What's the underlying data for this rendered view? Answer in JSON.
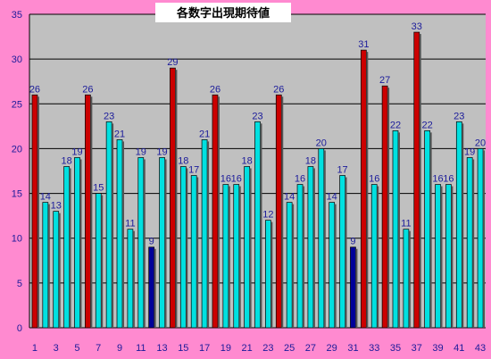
{
  "chart_data": {
    "type": "bar",
    "title": "各数字出現期待値",
    "xlabel": "",
    "ylabel": "",
    "ylim": [
      0,
      35
    ],
    "yticks": [
      0,
      5,
      10,
      15,
      20,
      25,
      30,
      35
    ],
    "grid": true,
    "categories": [
      "1",
      "2",
      "3",
      "4",
      "5",
      "6",
      "7",
      "8",
      "9",
      "10",
      "11",
      "12",
      "13",
      "14",
      "15",
      "16",
      "17",
      "18",
      "19",
      "20",
      "21",
      "22",
      "23",
      "24",
      "25",
      "26",
      "27",
      "28",
      "29",
      "30",
      "31",
      "32",
      "33",
      "34",
      "35",
      "36",
      "37",
      "38",
      "39",
      "40",
      "41",
      "42",
      "43"
    ],
    "xtick_labels": [
      "1",
      "3",
      "5",
      "7",
      "9",
      "11",
      "13",
      "15",
      "17",
      "19",
      "21",
      "23",
      "25",
      "27",
      "29",
      "31",
      "33",
      "35",
      "37",
      "39",
      "41",
      "43"
    ],
    "values": [
      26,
      14,
      13,
      18,
      19,
      26,
      15,
      23,
      21,
      11,
      19,
      9,
      19,
      29,
      18,
      17,
      21,
      26,
      16,
      16,
      18,
      23,
      12,
      26,
      14,
      16,
      18,
      20,
      14,
      17,
      9,
      31,
      16,
      27,
      22,
      11,
      33,
      22,
      16,
      16,
      23,
      19,
      20
    ],
    "colors": {
      "background": "#ff8ad0",
      "plot": "#c0c0c0",
      "normal": "#00e0e0",
      "high": "#cc0000",
      "low": "#000099",
      "grid": "#000000",
      "label": "#1b1b9a"
    }
  }
}
